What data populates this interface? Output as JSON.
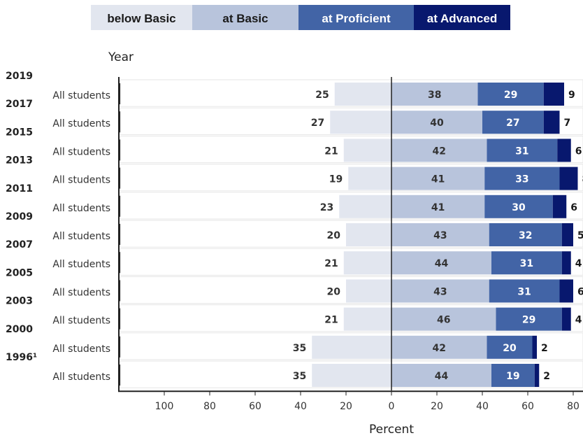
{
  "chart_data": {
    "type": "bar",
    "orientation": "horizontal-diverging",
    "legend": [
      {
        "name": "below Basic",
        "color": "#e2e6ef",
        "text_color": "#1a1a1a"
      },
      {
        "name": "at Basic",
        "color": "#b8c4dc",
        "text_color": "#1a1a1a"
      },
      {
        "name": "at Proficient",
        "color": "#4264a6",
        "text_color": "#ffffff"
      },
      {
        "name": "at Advanced",
        "color": "#08186e",
        "text_color": "#ffffff"
      }
    ],
    "legend_position": "top",
    "year_header": "Year",
    "xlabel": "Percent",
    "x_ticks": [
      "100",
      "80",
      "60",
      "40",
      "20",
      "0",
      "20",
      "40",
      "60",
      "80"
    ],
    "xlim": [
      -120,
      80
    ],
    "rows": [
      {
        "year": "2019",
        "group": "All students",
        "below_basic": 25,
        "at_basic": 38,
        "at_proficient": 29,
        "at_advanced": 9
      },
      {
        "year": "2017",
        "group": "All students",
        "below_basic": 27,
        "at_basic": 40,
        "at_proficient": 27,
        "at_advanced": 7
      },
      {
        "year": "2015",
        "group": "All students",
        "below_basic": 21,
        "at_basic": 42,
        "at_proficient": 31,
        "at_advanced": 6
      },
      {
        "year": "2013",
        "group": "All students",
        "below_basic": 19,
        "at_basic": 41,
        "at_proficient": 33,
        "at_advanced": 8
      },
      {
        "year": "2011",
        "group": "All students",
        "below_basic": 23,
        "at_basic": 41,
        "at_proficient": 30,
        "at_advanced": 6
      },
      {
        "year": "2009",
        "group": "All students",
        "below_basic": 20,
        "at_basic": 43,
        "at_proficient": 32,
        "at_advanced": 5
      },
      {
        "year": "2007",
        "group": "All students",
        "below_basic": 21,
        "at_basic": 44,
        "at_proficient": 31,
        "at_advanced": 4
      },
      {
        "year": "2005",
        "group": "All students",
        "below_basic": 20,
        "at_basic": 43,
        "at_proficient": 31,
        "at_advanced": 6
      },
      {
        "year": "2003",
        "group": "All students",
        "below_basic": 21,
        "at_basic": 46,
        "at_proficient": 29,
        "at_advanced": 4
      },
      {
        "year": "2000",
        "group": "All students",
        "below_basic": 35,
        "at_basic": 42,
        "at_proficient": 20,
        "at_advanced": 2
      },
      {
        "year": "1996¹",
        "group": "All students",
        "below_basic": 35,
        "at_basic": 44,
        "at_proficient": 19,
        "at_advanced": 2
      }
    ]
  }
}
